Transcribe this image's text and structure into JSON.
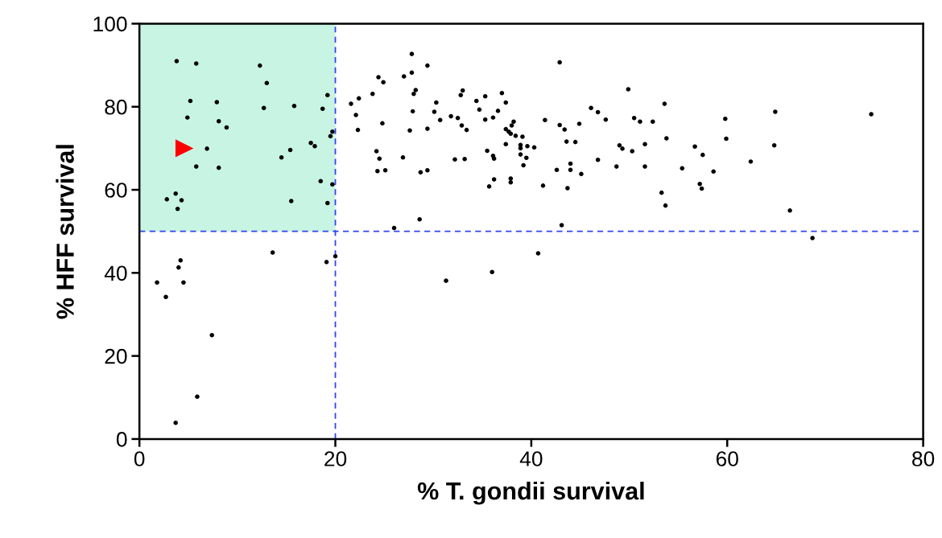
{
  "chart_data": {
    "type": "scatter",
    "xlabel": "% T. gondii survival",
    "ylabel": "% HFF survival",
    "xlim": [
      0,
      80
    ],
    "ylim": [
      0,
      100
    ],
    "xticks": [
      0,
      20,
      40,
      60,
      80
    ],
    "yticks": [
      0,
      20,
      40,
      60,
      80,
      100
    ],
    "grid": false,
    "marker": "circle",
    "ref_lines": [
      {
        "axis": "x",
        "value": 20,
        "color": "#3344ee",
        "line_style": "dashed"
      },
      {
        "axis": "y",
        "value": 50,
        "color": "#3344ee",
        "line_style": "dashed"
      }
    ],
    "bands": [
      {
        "axis": "x",
        "from": 0,
        "to": 20,
        "color": "#c8f5e3"
      }
    ],
    "series": [
      {
        "color": "#000000",
        "x": [
          3.8,
          5.8,
          12.3,
          13.0,
          19.2,
          5.2,
          7.9,
          12.7,
          15.8,
          18.7,
          4.9,
          8.1,
          8.9,
          19.7,
          19.5,
          17.5,
          17.9,
          6.9,
          15.4,
          14.5,
          5.8,
          8.1,
          18.5,
          19.7,
          3.7,
          2.8,
          4.3,
          15.5,
          19.2,
          3.9,
          13.6,
          20.0,
          4.2,
          4.0,
          1.8,
          4.5,
          2.7,
          19.1,
          7.4,
          5.9,
          3.7,
          27.8,
          42.9,
          29.4,
          24.4,
          24.9,
          27.0,
          27.8,
          28.2,
          28.0,
          33.0,
          32.8,
          37.0,
          35.3,
          23.8,
          22.4,
          21.6,
          34.4,
          37.4,
          30.3,
          22.1,
          27.9,
          30.1,
          34.7,
          36.6,
          22.3,
          24.8,
          27.6,
          29.4,
          30.7,
          31.8,
          32.5,
          32.9,
          33.4,
          35.3,
          36.1,
          41.4,
          38.2,
          38.0,
          37.4,
          37.7,
          37.9,
          38.4,
          39.1,
          37.4,
          38.9,
          38.9,
          39.6,
          40.3,
          38.9,
          39.5,
          39.2,
          42.9,
          43.4,
          43.6,
          24.2,
          24.5,
          26.9,
          24.3,
          25.1,
          28.7,
          29.4,
          32.2,
          33.2,
          35.5,
          36.1,
          36.2,
          36.2,
          37.9,
          37.9,
          35.7,
          41.2,
          42.6,
          44.0,
          44.0,
          43.7,
          28.6,
          26.0,
          43.1,
          40.7,
          36.0,
          31.3,
          49.9,
          53.6,
          46.1,
          46.8,
          47.6,
          50.5,
          51.1,
          52.4,
          59.8,
          64.9,
          74.7,
          44.9,
          44.5,
          49.0,
          49.3,
          51.6,
          50.3,
          53.8,
          59.9,
          64.8,
          56.7,
          57.5,
          46.8,
          48.7,
          51.6,
          55.4,
          58.6,
          62.4,
          45.1,
          53.3,
          53.7,
          57.2,
          57.4,
          66.4,
          68.7
        ],
        "values": [
          91.0,
          90.4,
          89.9,
          85.7,
          82.8,
          81.4,
          81.1,
          79.7,
          80.2,
          79.5,
          77.4,
          76.5,
          75.0,
          74.0,
          72.9,
          71.3,
          70.5,
          69.9,
          69.6,
          67.8,
          65.6,
          65.3,
          62.1,
          61.3,
          59.1,
          57.7,
          57.5,
          57.3,
          56.8,
          55.4,
          44.9,
          44.0,
          43.0,
          41.3,
          37.7,
          37.7,
          34.2,
          42.6,
          25.0,
          10.2,
          3.9,
          92.7,
          90.7,
          89.9,
          87.1,
          85.9,
          87.3,
          88.2,
          84.0,
          83.1,
          83.9,
          82.8,
          83.3,
          82.5,
          83.1,
          82.0,
          80.7,
          81.4,
          81.0,
          81.0,
          78.0,
          78.9,
          78.8,
          79.3,
          79.0,
          74.4,
          76.0,
          74.3,
          74.7,
          76.8,
          77.7,
          77.3,
          75.5,
          74.4,
          76.9,
          77.4,
          76.8,
          76.4,
          75.5,
          74.6,
          74.0,
          73.5,
          73.0,
          72.8,
          71.0,
          70.8,
          70.0,
          70.5,
          70.2,
          68.5,
          67.7,
          65.9,
          75.6,
          74.5,
          71.6,
          69.3,
          67.5,
          67.8,
          64.5,
          64.7,
          64.2,
          64.7,
          67.3,
          67.4,
          69.4,
          68.2,
          67.5,
          62.5,
          62.7,
          61.8,
          60.8,
          61.0,
          64.8,
          66.3,
          64.8,
          60.4,
          52.9,
          50.8,
          51.5,
          44.7,
          40.2,
          38.1,
          84.2,
          80.7,
          79.7,
          78.7,
          76.9,
          77.3,
          76.4,
          76.4,
          77.1,
          78.8,
          78.2,
          75.9,
          71.5,
          70.7,
          69.9,
          71.0,
          69.3,
          72.4,
          72.3,
          70.7,
          70.4,
          68.4,
          67.2,
          65.6,
          65.6,
          65.2,
          64.4,
          66.8,
          63.8,
          59.3,
          56.2,
          61.4,
          60.3,
          55.0,
          48.4
        ]
      },
      {
        "color": "#ff0000",
        "marker": "triangle",
        "x": [
          4.6
        ],
        "values": [
          70.0
        ]
      }
    ]
  }
}
